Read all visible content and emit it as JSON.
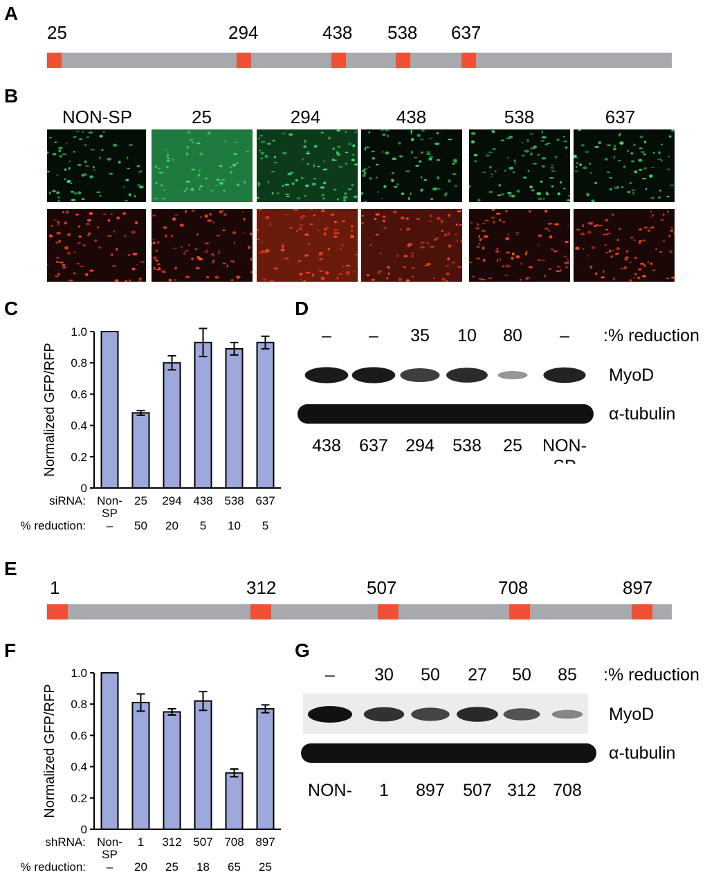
{
  "panels": {
    "A": {
      "label": "A",
      "sites": [
        {
          "name": "25",
          "pos": 25
        },
        {
          "name": "294",
          "pos": 294
        },
        {
          "name": "438",
          "pos": 438
        },
        {
          "name": "538",
          "pos": 538
        },
        {
          "name": "637",
          "pos": 637
        }
      ]
    },
    "B": {
      "label": "B",
      "columns": [
        "NON-SP",
        "25",
        "294",
        "438",
        "538",
        "637"
      ],
      "gfp_intensity": [
        0.7,
        0.3,
        1.0,
        0.85,
        0.9,
        0.8
      ],
      "rfp_intensity": [
        0.7,
        0.9,
        0.8,
        0.75,
        0.95,
        0.95
      ]
    },
    "C": {
      "label": "C",
      "chart_data": {
        "type": "bar",
        "ylabel": "Normalized GFP/RFP",
        "ylim": [
          0,
          1.0
        ],
        "yticks": [
          "0",
          "0.2",
          "0.4",
          "0.6",
          "0.8",
          "1.0"
        ],
        "row_label": "siRNA:",
        "categories": [
          "Non-SP",
          "25",
          "294",
          "438",
          "538",
          "637"
        ],
        "values": [
          1.0,
          0.48,
          0.8,
          0.93,
          0.89,
          0.93
        ],
        "errors": [
          0,
          0.015,
          0.045,
          0.09,
          0.04,
          0.04
        ],
        "reduction_label": "% reduction:",
        "reduction": [
          "–",
          "50",
          "20",
          "5",
          "10",
          "5"
        ],
        "bar_color": "#9da8dc"
      }
    },
    "D": {
      "label": "D",
      "reduction": [
        "–",
        "–",
        "35",
        "10",
        "80",
        "–"
      ],
      "reduction_label": ":% reduction",
      "row1": "MyoD",
      "row2": "α-tubulin",
      "lanes": [
        "438",
        "637",
        "294",
        "538",
        "25",
        "NON-\nSP"
      ],
      "myod_strength": [
        0.95,
        0.95,
        0.75,
        0.85,
        0.25,
        0.9
      ]
    },
    "E": {
      "label": "E",
      "sites": [
        {
          "name": "1",
          "pos": 1
        },
        {
          "name": "312",
          "pos": 312
        },
        {
          "name": "507",
          "pos": 507
        },
        {
          "name": "708",
          "pos": 708
        },
        {
          "name": "897",
          "pos": 897
        }
      ]
    },
    "F": {
      "label": "F",
      "chart_data": {
        "type": "bar",
        "ylabel": "Normalized GFP/RFP",
        "ylim": [
          0,
          1.0
        ],
        "yticks": [
          "0",
          "0.2",
          "0.4",
          "0.6",
          "0.8",
          "1.0"
        ],
        "row_label": "shRNA:",
        "categories": [
          "Non-SP",
          "1",
          "312",
          "507",
          "708",
          "897"
        ],
        "values": [
          1.0,
          0.81,
          0.75,
          0.82,
          0.36,
          0.77
        ],
        "errors": [
          0,
          0.055,
          0.02,
          0.06,
          0.025,
          0.025
        ],
        "reduction_label": "% reduction:",
        "reduction": [
          "–",
          "20",
          "25",
          "18",
          "65",
          "25"
        ],
        "bar_color": "#9da8dc"
      }
    },
    "G": {
      "label": "G",
      "reduction": [
        "–",
        "30",
        "50",
        "27",
        "50",
        "85"
      ],
      "reduction_label": ":% reduction",
      "row1": "MyoD",
      "row2": "α-tubulin",
      "lanes": [
        "NON-\nSP",
        "1",
        "897",
        "507",
        "312",
        "708"
      ],
      "myod_strength": [
        1.0,
        0.8,
        0.7,
        0.85,
        0.6,
        0.3
      ]
    }
  }
}
